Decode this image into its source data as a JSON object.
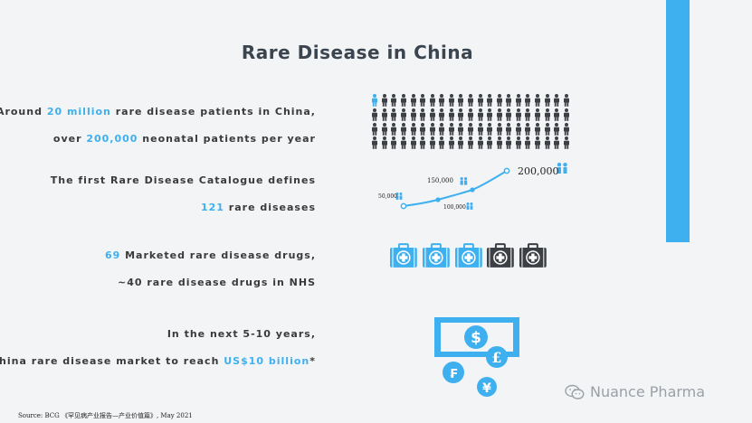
{
  "title": "Rare Disease in China",
  "stats": [
    {
      "pre": "Around ",
      "hl": "20 million",
      "post": " rare disease patients in China,"
    },
    {
      "pre": "over ",
      "hl": "200,000",
      "post": " neonatal patients per year"
    },
    {
      "pre": "The first Rare Disease Catalogue defines",
      "hl": "",
      "post": ""
    },
    {
      "pre": "",
      "hl": "121",
      "post": " rare diseases"
    },
    {
      "pre": "",
      "hl": "69",
      "post": " Marketed rare disease drugs,"
    },
    {
      "pre": "~40 rare disease drugs in NHS",
      "hl": "",
      "post": ""
    },
    {
      "pre": "In the next 5-10 years,",
      "hl": "",
      "post": ""
    },
    {
      "pre": "China rare disease market to reach ",
      "hl": "US$10 billion",
      "post": "*"
    }
  ],
  "growth_labels": [
    "50,000",
    "100,000",
    "150,000",
    "200,000"
  ],
  "icons": {
    "people": "person-icon",
    "medical_kit": "medical-kit-icon",
    "money": "money-icon",
    "brand": "wechat-icon"
  },
  "source": "Source: BCG 《罕见病产业报告—产业价值篇》, May 2021",
  "brand": "Nuance Pharma",
  "colors": {
    "accent": "#3eb0f0",
    "dark": "#3c3f44",
    "text": "#3a3a3a"
  }
}
